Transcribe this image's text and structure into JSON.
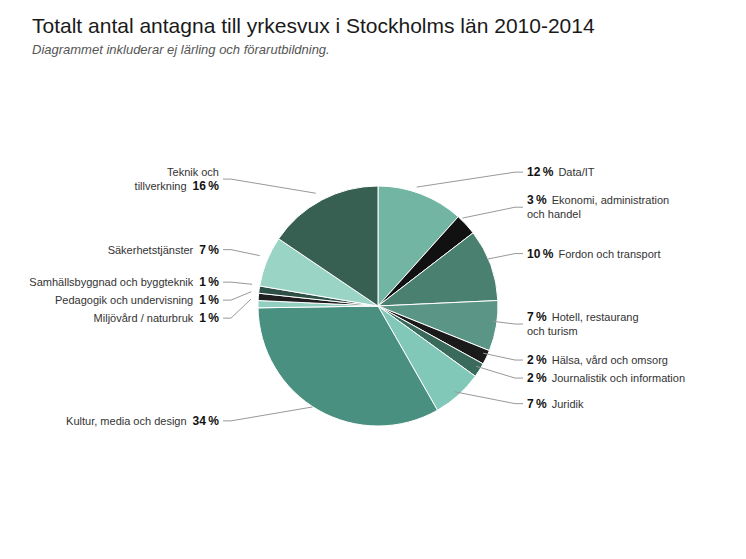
{
  "chart_data": {
    "type": "pie",
    "title": "Totalt antal antagna till yrkesvux i Stockholms län 2010-2014",
    "subtitle": "Diagrammet inkluderar ej lärling och förarutbildning.",
    "categories": [
      "Data/IT",
      "Ekonomi, administration\noch handel",
      "Fordon och transport",
      "Hotell, restaurang\noch turism",
      "Hälsa, vård och omsorg",
      "Journalistik och information",
      "Juridik",
      "Kultur, media och design",
      "Miljövård / naturbruk",
      "Pedagogik och undervisning",
      "Samhällsbyggnad och byggteknik",
      "Säkerhetstjänster",
      "Teknik och\ntillverkning"
    ],
    "values": [
      12,
      3,
      10,
      7,
      2,
      2,
      7,
      34,
      1,
      1,
      1,
      7,
      16
    ],
    "value_labels": [
      "12 %",
      "3 %",
      "10 %",
      "7 %",
      "2 %",
      "2 %",
      "7 %",
      "34 %",
      "1 %",
      "1 %",
      "1 %",
      "7 %",
      "16 %"
    ],
    "colors": [
      "#72b5a2",
      "#111111",
      "#4a8070",
      "#5a9585",
      "#1a1a1a",
      "#3a6a5c",
      "#82c8b8",
      "#4a9080",
      "#92cfc0",
      "#1f1f1f",
      "#2e4f45",
      "#9ad4c5",
      "#375f52"
    ]
  }
}
